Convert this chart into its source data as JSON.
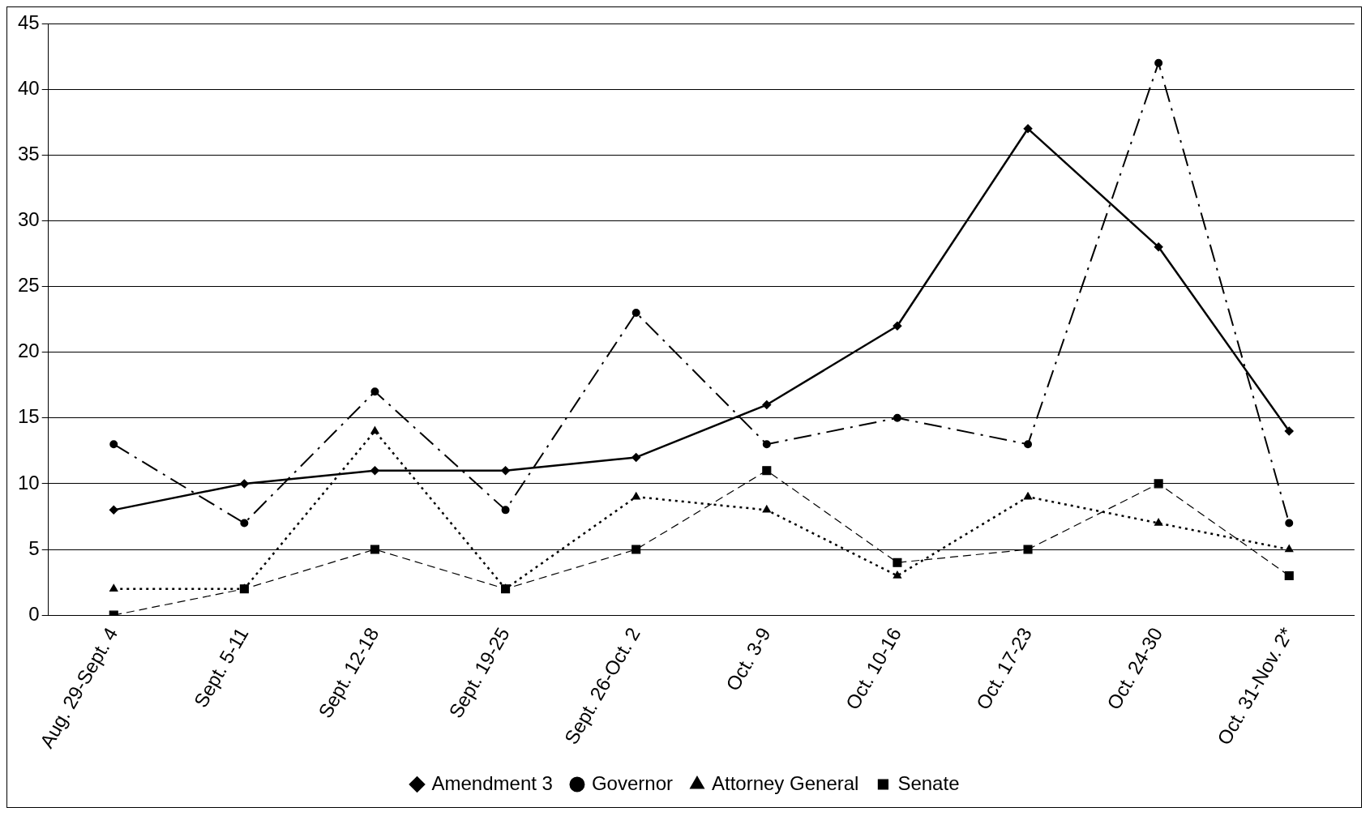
{
  "chart_data": {
    "type": "line",
    "categories": [
      "Aug. 29-Sept. 4",
      "Sept. 5-11",
      "Sept. 12-18",
      "Sept. 19-25",
      "Sept. 26-Oct. 2",
      "Oct. 3-9",
      "Oct. 10-16",
      "Oct. 17-23",
      "Oct. 24-30",
      "Oct. 31-Nov. 2*"
    ],
    "series": [
      {
        "name": "Amendment 3",
        "color": "#000000",
        "marker": "diamond",
        "line_style": "solid",
        "values": [
          8,
          10,
          11,
          11,
          12,
          16,
          22,
          37,
          28,
          14
        ]
      },
      {
        "name": "Governor",
        "color": "#000000",
        "marker": "circle",
        "line_style": "dashdot",
        "values": [
          13,
          7,
          17,
          8,
          23,
          13,
          15,
          13,
          42,
          7
        ]
      },
      {
        "name": "Attorney General",
        "color": "#000000",
        "marker": "triangle",
        "line_style": "dotted",
        "values": [
          2,
          2,
          14,
          2,
          9,
          8,
          3,
          9,
          7,
          5
        ]
      },
      {
        "name": "Senate",
        "color": "#000000",
        "marker": "square",
        "line_style": "dashed",
        "values": [
          0,
          2,
          5,
          2,
          5,
          11,
          4,
          5,
          10,
          3
        ]
      }
    ],
    "ylim": [
      0,
      45
    ],
    "yticks": [
      0,
      5,
      10,
      15,
      20,
      25,
      30,
      35,
      40,
      45
    ],
    "grid": "y",
    "legend": "bottom"
  }
}
